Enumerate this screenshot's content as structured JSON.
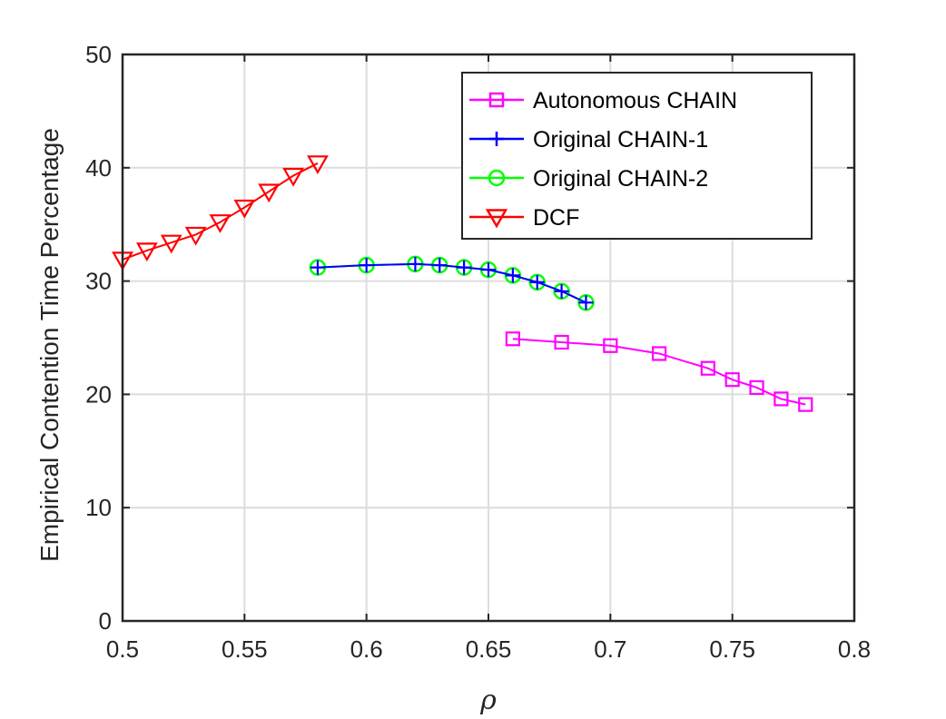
{
  "chart_data": {
    "type": "line",
    "xlabel": "ρ",
    "ylabel": "Empirical Contention Time Percentage",
    "xlim": [
      0.5,
      0.8
    ],
    "ylim": [
      0,
      50
    ],
    "xticks": [
      0.5,
      0.55,
      0.6,
      0.65,
      0.7,
      0.75,
      0.8
    ],
    "xtick_labels": [
      "0.5",
      "0.55",
      "0.6",
      "0.65",
      "0.7",
      "0.75",
      "0.8"
    ],
    "yticks": [
      0,
      10,
      20,
      30,
      40,
      50
    ],
    "ytick_labels": [
      "0",
      "10",
      "20",
      "30",
      "40",
      "50"
    ],
    "grid": true,
    "legend_position": "top-right",
    "series": [
      {
        "name": "Autonomous CHAIN",
        "color": "#ff00ff",
        "marker": "square",
        "x": [
          0.66,
          0.68,
          0.7,
          0.72,
          0.74,
          0.75,
          0.76,
          0.77,
          0.78
        ],
        "y": [
          24.9,
          24.6,
          24.3,
          23.6,
          22.3,
          21.3,
          20.6,
          19.6,
          19.1
        ]
      },
      {
        "name": "Original CHAIN-1",
        "color": "#0000ff",
        "marker": "plus",
        "x": [
          0.58,
          0.6,
          0.62,
          0.63,
          0.64,
          0.65,
          0.66,
          0.67,
          0.68,
          0.69
        ],
        "y": [
          31.2,
          31.4,
          31.5,
          31.4,
          31.2,
          31.0,
          30.5,
          29.9,
          29.1,
          28.1
        ]
      },
      {
        "name": "Original CHAIN-2",
        "color": "#00ff00",
        "marker": "circle",
        "x": [
          0.58,
          0.6,
          0.62,
          0.63,
          0.64,
          0.65,
          0.66,
          0.67,
          0.68,
          0.69
        ],
        "y": [
          31.2,
          31.4,
          31.5,
          31.4,
          31.2,
          31.0,
          30.5,
          29.9,
          29.1,
          28.1
        ]
      },
      {
        "name": "DCF",
        "color": "#ff0000",
        "marker": "triangle-down",
        "x": [
          0.5,
          0.51,
          0.52,
          0.53,
          0.54,
          0.55,
          0.56,
          0.57,
          0.58
        ],
        "y": [
          31.9,
          32.7,
          33.4,
          34.1,
          35.2,
          36.5,
          37.9,
          39.3,
          40.4
        ]
      }
    ]
  }
}
